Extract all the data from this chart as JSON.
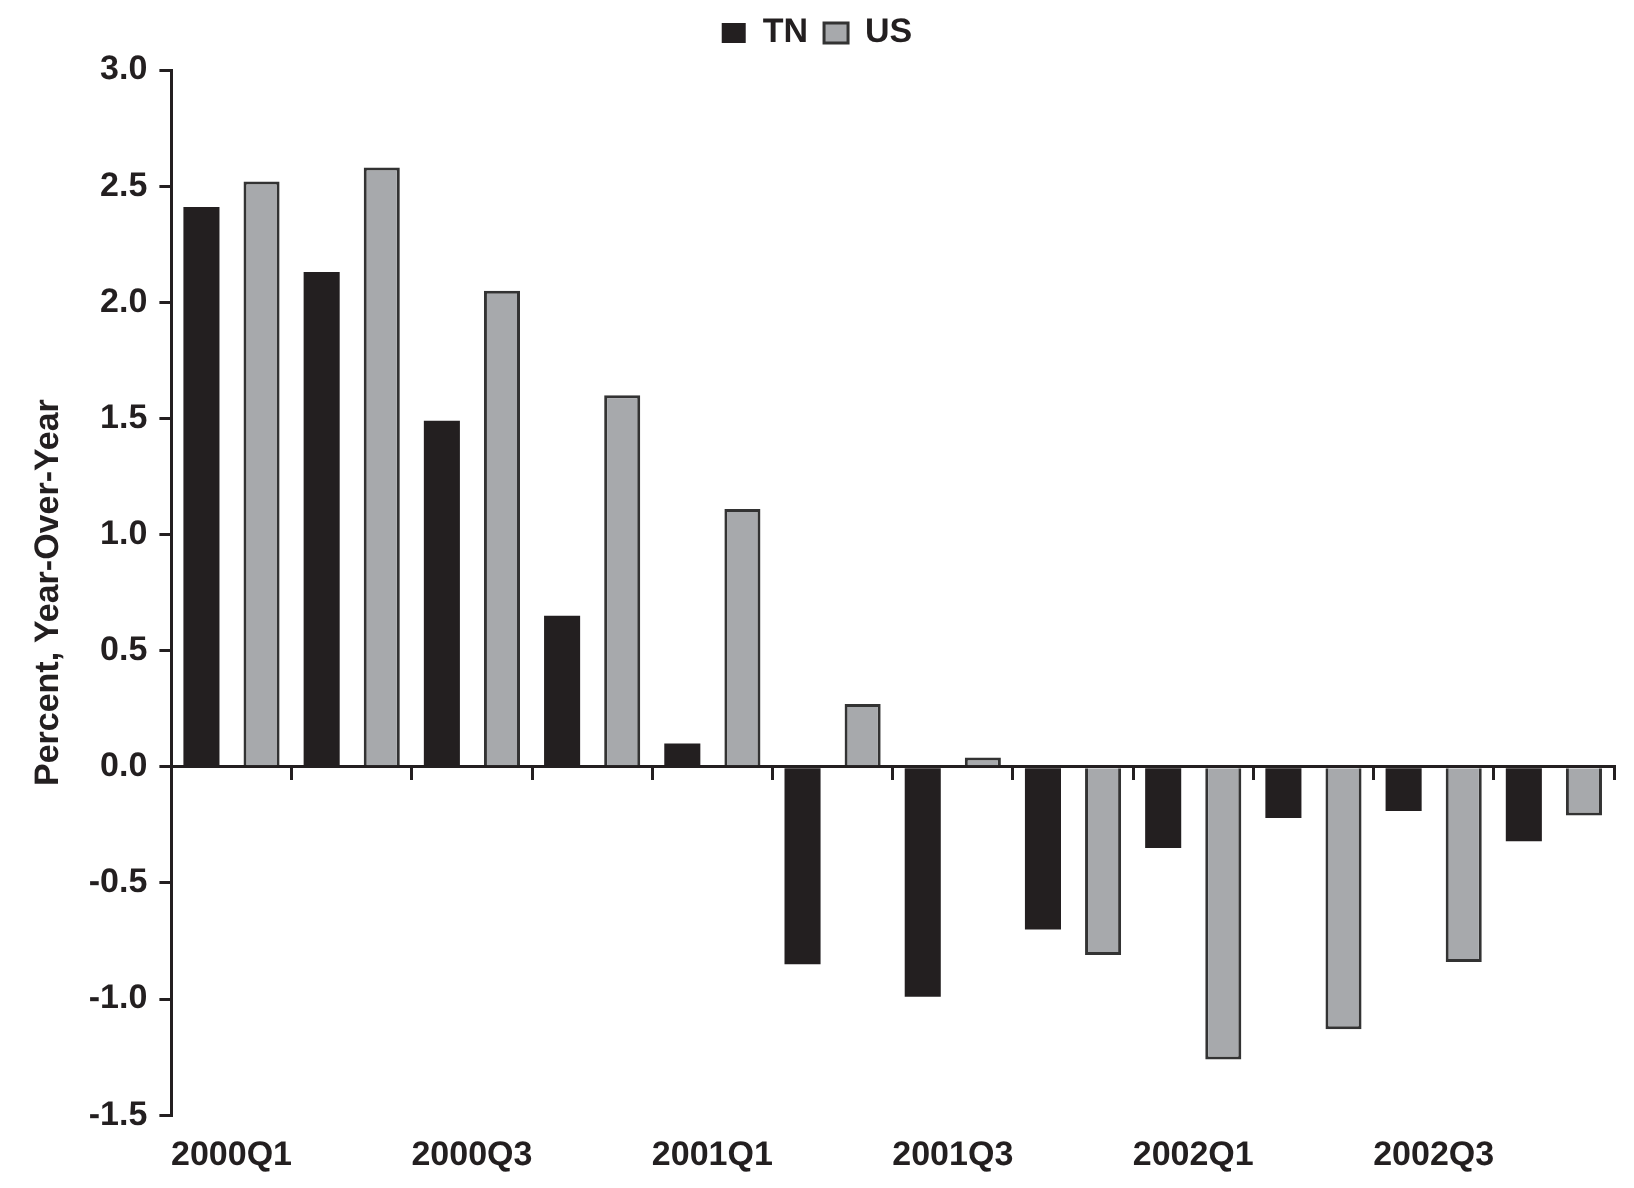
{
  "chart_data": {
    "type": "bar",
    "ylabel": "Percent, Year-Over-Year",
    "categories": [
      "2000Q1",
      null,
      "2000Q3",
      null,
      "2001Q1",
      null,
      "2001Q3",
      null,
      "2002Q1",
      null,
      "2002Q3",
      null
    ],
    "series": [
      {
        "name": "TN",
        "color": "#231f20",
        "values": [
          2.41,
          2.13,
          1.49,
          0.65,
          0.1,
          -0.85,
          -0.99,
          -0.7,
          -0.35,
          -0.22,
          -0.19,
          -0.32
        ]
      },
      {
        "name": "US",
        "color": "#a7a9ac",
        "values": [
          2.52,
          2.58,
          2.05,
          1.6,
          1.11,
          0.27,
          0.04,
          -0.81,
          -1.26,
          -1.13,
          -0.84,
          -0.21
        ]
      }
    ],
    "ylim": [
      -1.5,
      3.0
    ],
    "yticks": [
      {
        "value": -1.5,
        "label": "-1.5"
      },
      {
        "value": -1,
        "label": "-1.0"
      },
      {
        "value": -0.5,
        "label": "-0.5"
      },
      {
        "value": 0,
        "label": "0.0"
      },
      {
        "value": 0.5,
        "label": "0.5"
      },
      {
        "value": 1,
        "label": "1.0"
      },
      {
        "value": 1.5,
        "label": "1.5"
      },
      {
        "value": 2,
        "label": "2.0"
      },
      {
        "value": 2.5,
        "label": "2.5"
      },
      {
        "value": 3,
        "label": "3.0"
      }
    ],
    "legend": "top"
  }
}
